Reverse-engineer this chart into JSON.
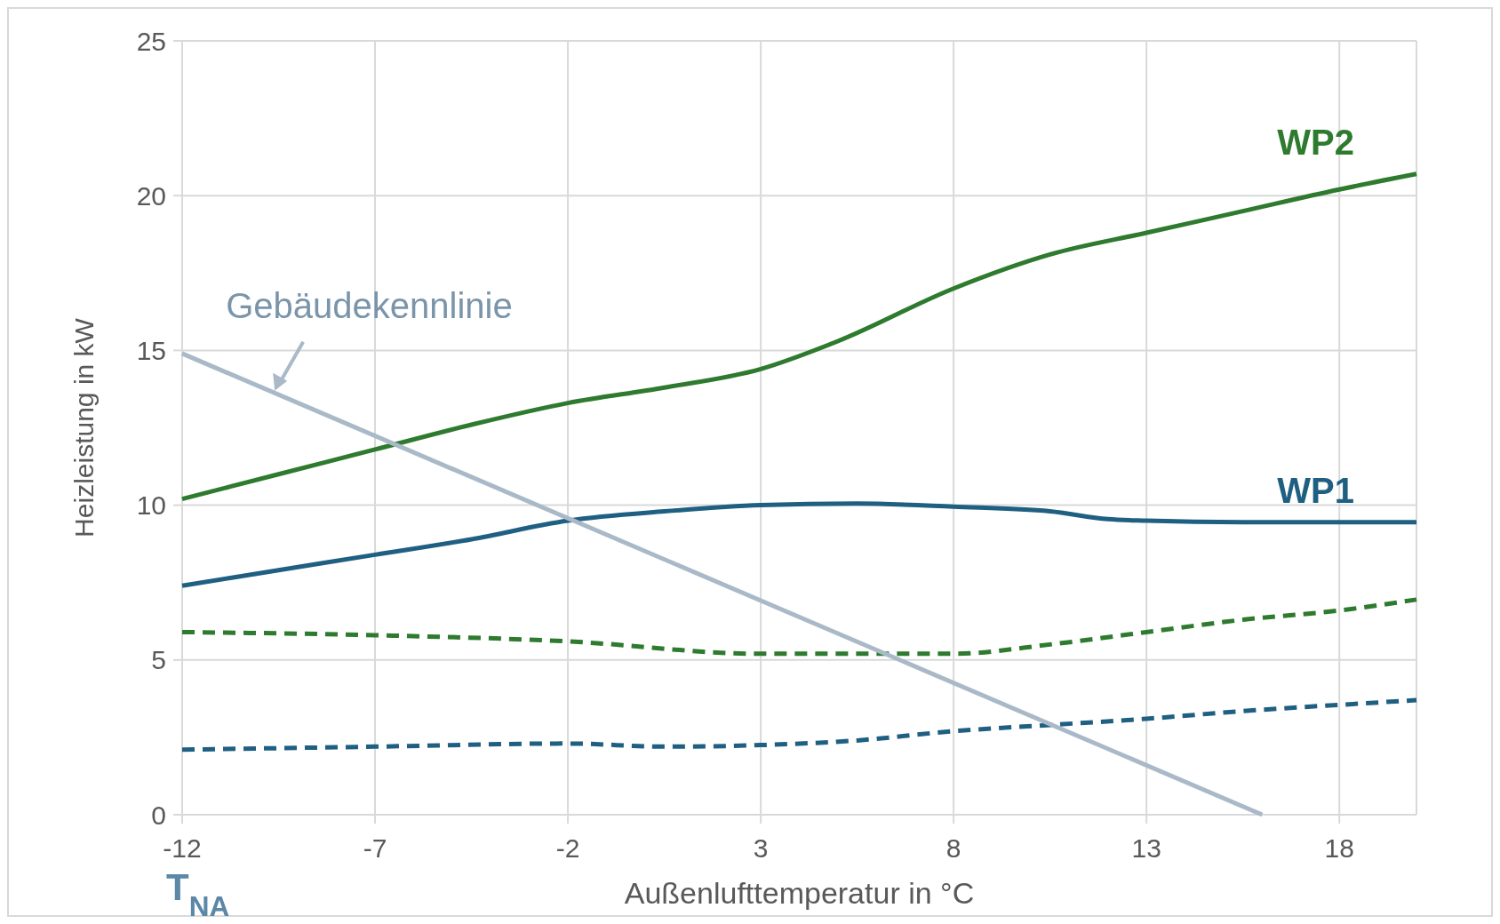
{
  "chart_data": {
    "type": "line",
    "xlabel": "Außenlufttemperatur in °C",
    "ylabel": "Heizleistung in kW",
    "xlim": [
      -12,
      20
    ],
    "xticks": [
      -12,
      -7,
      -2,
      3,
      8,
      13,
      18
    ],
    "ylim": [
      0,
      25
    ],
    "yticks": [
      0,
      5,
      10,
      15,
      20,
      25
    ],
    "grid": true,
    "marker": "none",
    "series": [
      {
        "name": "WP2",
        "color": "#2e7a2e",
        "line_style": "solid",
        "x": [
          -12,
          -9.5,
          -7,
          -4.5,
          -2,
          0.5,
          3,
          5,
          8,
          10.5,
          13,
          15.5,
          18,
          20
        ],
        "values": [
          10.2,
          11,
          11.8,
          12.6,
          13.3,
          13.8,
          14.4,
          15.3,
          17,
          18.1,
          18.8,
          19.5,
          20.2,
          20.7
        ]
      },
      {
        "name": "WP1",
        "color": "#1f5f82",
        "line_style": "solid",
        "x": [
          -12,
          -9.5,
          -7,
          -4.5,
          -2,
          0.5,
          3,
          5.5,
          8,
          10.5,
          12,
          13,
          15.5,
          18,
          20
        ],
        "values": [
          7.4,
          7.9,
          8.4,
          8.9,
          9.5,
          9.8,
          10,
          10.05,
          9.95,
          9.8,
          9.55,
          9.5,
          9.45,
          9.45,
          9.45
        ]
      },
      {
        "color": "#2e7a2e",
        "line_style": "dashed",
        "x": [
          -12,
          -7,
          -2,
          3,
          5.5,
          8,
          10.5,
          13,
          15.5,
          18,
          20
        ],
        "values": [
          5.9,
          5.8,
          5.6,
          5.2,
          5.2,
          5.2,
          5.5,
          5.9,
          6.3,
          6.6,
          6.95
        ]
      },
      {
        "color": "#1f5f82",
        "line_style": "dashed",
        "x": [
          -12,
          -7,
          -2,
          0.5,
          3,
          5.5,
          8,
          10.5,
          13,
          15.5,
          18,
          20
        ],
        "values": [
          2.1,
          2.2,
          2.3,
          2.2,
          2.25,
          2.4,
          2.7,
          2.9,
          3.1,
          3.35,
          3.55,
          3.7
        ]
      },
      {
        "color": "#a9b9c8",
        "line_style": "solid",
        "x": [
          -12,
          16
        ],
        "values": [
          14.9,
          0
        ]
      }
    ],
    "annotations": [
      {
        "text": "Gebäudekennlinie",
        "x": -9.6,
        "y": 13.7
      },
      "T$_{NA}$"
    ]
  }
}
